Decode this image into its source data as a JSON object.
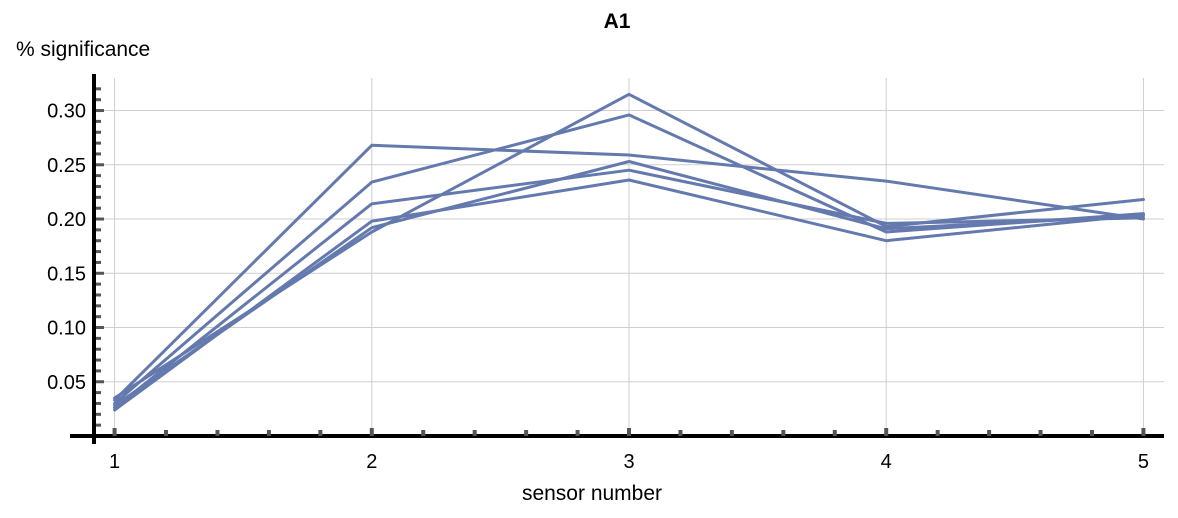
{
  "chart_data": {
    "type": "line",
    "title": "A1",
    "xlabel": "sensor number",
    "ylabel": "% significance",
    "x": [
      1,
      2,
      3,
      4,
      5
    ],
    "xlim": [
      0.92,
      5.08
    ],
    "ylim": [
      -0.0,
      0.33
    ],
    "x_ticks": [
      "1",
      "2",
      "3",
      "4",
      "5"
    ],
    "y_ticks": [
      "0.05",
      "0.10",
      "0.15",
      "0.20",
      "0.25",
      "0.30"
    ],
    "y_tick_values": [
      0.05,
      0.1,
      0.15,
      0.2,
      0.25,
      0.3
    ],
    "grid": true,
    "series_color": "#6479ae",
    "series": [
      {
        "values": [
          0.033,
          0.268,
          0.259,
          0.235,
          0.2
        ]
      },
      {
        "values": [
          0.03,
          0.234,
          0.296,
          0.188,
          0.205
        ]
      },
      {
        "values": [
          0.026,
          0.214,
          0.245,
          0.196,
          0.201
        ]
      },
      {
        "values": [
          0.024,
          0.198,
          0.236,
          0.18,
          0.204
        ]
      },
      {
        "values": [
          0.035,
          0.188,
          0.315,
          0.193,
          0.218
        ]
      },
      {
        "values": [
          0.028,
          0.192,
          0.253,
          0.191,
          0.203
        ]
      }
    ]
  }
}
